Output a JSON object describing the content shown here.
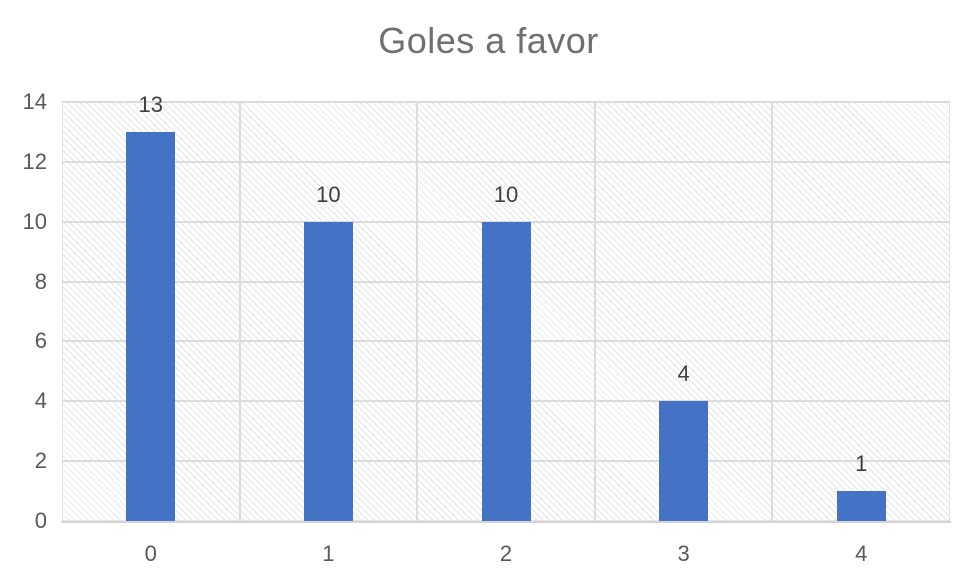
{
  "chart_data": {
    "type": "bar",
    "title": "Goles a favor",
    "categories": [
      "0",
      "1",
      "2",
      "3",
      "4"
    ],
    "values": [
      13,
      10,
      10,
      4,
      1
    ],
    "data_labels": [
      "13",
      "10",
      "10",
      "4",
      "1"
    ],
    "y_ticks": [
      0,
      2,
      4,
      6,
      8,
      10,
      12,
      14
    ],
    "ylim": [
      0,
      14
    ],
    "xlabel": "",
    "ylabel": "",
    "grid": true,
    "legend_position": "none",
    "plot_background": "light-diagonal-hatch",
    "colors": {
      "bar": "#4472C4",
      "title": "#6f6f6f",
      "tick_label": "#595959",
      "data_label": "#3f3f3f",
      "gridline": "#dcdcdc",
      "axis_line": "#d4d4d4"
    }
  }
}
